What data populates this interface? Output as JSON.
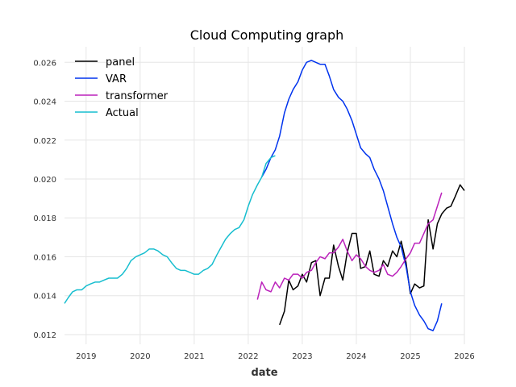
{
  "chart_data": {
    "type": "line",
    "title": "Cloud Computing graph",
    "xlabel": "date",
    "ylabel": "",
    "xlim": [
      2018.6,
      2026.0
    ],
    "ylim": [
      0.0115,
      0.0268
    ],
    "x_ticks": [
      2019,
      2020,
      2021,
      2022,
      2023,
      2024,
      2025,
      2026
    ],
    "x_tick_labels": [
      "2019",
      "2020",
      "2021",
      "2022",
      "2023",
      "2024",
      "2025",
      "2026"
    ],
    "y_ticks": [
      0.012,
      0.014,
      0.016,
      0.018,
      0.02,
      0.022,
      0.024,
      0.026
    ],
    "y_tick_labels": [
      "0.012",
      "0.014",
      "0.016",
      "0.018",
      "0.020",
      "0.022",
      "0.024",
      "0.026"
    ],
    "grid": true,
    "legend": "top-left",
    "series": [
      {
        "name": "panel",
        "color": "#000000",
        "points": [
          [
            2022.58,
            0.0125
          ],
          [
            2022.67,
            0.0132
          ],
          [
            2022.75,
            0.0148
          ],
          [
            2022.83,
            0.0143
          ],
          [
            2022.92,
            0.0145
          ],
          [
            2023.0,
            0.0151
          ],
          [
            2023.08,
            0.0147
          ],
          [
            2023.17,
            0.0157
          ],
          [
            2023.25,
            0.0158
          ],
          [
            2023.33,
            0.014
          ],
          [
            2023.42,
            0.0149
          ],
          [
            2023.5,
            0.0149
          ],
          [
            2023.58,
            0.0166
          ],
          [
            2023.67,
            0.0155
          ],
          [
            2023.75,
            0.0148
          ],
          [
            2023.83,
            0.0162
          ],
          [
            2023.92,
            0.0172
          ],
          [
            2024.0,
            0.0172
          ],
          [
            2024.08,
            0.0154
          ],
          [
            2024.17,
            0.0155
          ],
          [
            2024.25,
            0.0163
          ],
          [
            2024.33,
            0.0151
          ],
          [
            2024.42,
            0.015
          ],
          [
            2024.5,
            0.0158
          ],
          [
            2024.58,
            0.0155
          ],
          [
            2024.67,
            0.0163
          ],
          [
            2024.75,
            0.016
          ],
          [
            2024.83,
            0.0168
          ],
          [
            2024.92,
            0.0157
          ],
          [
            2025.0,
            0.0141
          ],
          [
            2025.08,
            0.0146
          ],
          [
            2025.17,
            0.0144
          ],
          [
            2025.25,
            0.0145
          ],
          [
            2025.33,
            0.0179
          ],
          [
            2025.42,
            0.0164
          ],
          [
            2025.5,
            0.0177
          ],
          [
            2025.58,
            0.0182
          ],
          [
            2025.67,
            0.0185
          ],
          [
            2025.75,
            0.0186
          ],
          [
            2025.83,
            0.0191
          ],
          [
            2025.92,
            0.0197
          ],
          [
            2026.0,
            0.0194
          ]
        ]
      },
      {
        "name": "VAR",
        "color": "#0033ee",
        "points": [
          [
            2022.25,
            0.0201
          ],
          [
            2022.33,
            0.0205
          ],
          [
            2022.42,
            0.0211
          ],
          [
            2022.5,
            0.0215
          ],
          [
            2022.58,
            0.0222
          ],
          [
            2022.67,
            0.0234
          ],
          [
            2022.75,
            0.0241
          ],
          [
            2022.83,
            0.0246
          ],
          [
            2022.92,
            0.025
          ],
          [
            2023.0,
            0.0256
          ],
          [
            2023.08,
            0.026
          ],
          [
            2023.17,
            0.0261
          ],
          [
            2023.25,
            0.026
          ],
          [
            2023.33,
            0.0259
          ],
          [
            2023.42,
            0.0259
          ],
          [
            2023.5,
            0.0253
          ],
          [
            2023.58,
            0.0246
          ],
          [
            2023.67,
            0.0242
          ],
          [
            2023.75,
            0.024
          ],
          [
            2023.83,
            0.0236
          ],
          [
            2023.92,
            0.023
          ],
          [
            2024.0,
            0.0223
          ],
          [
            2024.08,
            0.0216
          ],
          [
            2024.17,
            0.0213
          ],
          [
            2024.25,
            0.0211
          ],
          [
            2024.33,
            0.0205
          ],
          [
            2024.42,
            0.02
          ],
          [
            2024.5,
            0.0194
          ],
          [
            2024.58,
            0.0186
          ],
          [
            2024.67,
            0.0177
          ],
          [
            2024.75,
            0.017
          ],
          [
            2024.83,
            0.0165
          ],
          [
            2024.92,
            0.0155
          ],
          [
            2025.0,
            0.0142
          ],
          [
            2025.08,
            0.0135
          ],
          [
            2025.17,
            0.013
          ],
          [
            2025.25,
            0.0127
          ],
          [
            2025.33,
            0.0123
          ],
          [
            2025.42,
            0.0122
          ],
          [
            2025.5,
            0.0127
          ],
          [
            2025.58,
            0.0136
          ]
        ]
      },
      {
        "name": "transformer",
        "color": "#bb22bb",
        "points": [
          [
            2022.17,
            0.0138
          ],
          [
            2022.25,
            0.0147
          ],
          [
            2022.33,
            0.0143
          ],
          [
            2022.42,
            0.0142
          ],
          [
            2022.5,
            0.0147
          ],
          [
            2022.58,
            0.0144
          ],
          [
            2022.67,
            0.0149
          ],
          [
            2022.75,
            0.0148
          ],
          [
            2022.83,
            0.0151
          ],
          [
            2022.92,
            0.0151
          ],
          [
            2023.0,
            0.0149
          ],
          [
            2023.08,
            0.0152
          ],
          [
            2023.17,
            0.0153
          ],
          [
            2023.25,
            0.0157
          ],
          [
            2023.33,
            0.016
          ],
          [
            2023.42,
            0.0159
          ],
          [
            2023.5,
            0.0162
          ],
          [
            2023.58,
            0.0162
          ],
          [
            2023.67,
            0.0165
          ],
          [
            2023.75,
            0.0169
          ],
          [
            2023.83,
            0.0163
          ],
          [
            2023.92,
            0.0158
          ],
          [
            2024.0,
            0.0161
          ],
          [
            2024.08,
            0.0159
          ],
          [
            2024.17,
            0.0155
          ],
          [
            2024.25,
            0.0153
          ],
          [
            2024.33,
            0.0152
          ],
          [
            2024.42,
            0.0153
          ],
          [
            2024.5,
            0.0156
          ],
          [
            2024.58,
            0.0151
          ],
          [
            2024.67,
            0.015
          ],
          [
            2024.75,
            0.0152
          ],
          [
            2024.83,
            0.0155
          ],
          [
            2024.92,
            0.0159
          ],
          [
            2025.0,
            0.0162
          ],
          [
            2025.08,
            0.0167
          ],
          [
            2025.17,
            0.0167
          ],
          [
            2025.25,
            0.0172
          ],
          [
            2025.33,
            0.0177
          ],
          [
            2025.42,
            0.0179
          ],
          [
            2025.5,
            0.0186
          ],
          [
            2025.58,
            0.0193
          ]
        ]
      },
      {
        "name": "Actual",
        "color": "#17becf",
        "points": [
          [
            2018.6,
            0.0136
          ],
          [
            2018.67,
            0.0139
          ],
          [
            2018.75,
            0.0142
          ],
          [
            2018.83,
            0.0143
          ],
          [
            2018.92,
            0.0143
          ],
          [
            2019.0,
            0.0145
          ],
          [
            2019.08,
            0.0146
          ],
          [
            2019.17,
            0.0147
          ],
          [
            2019.25,
            0.0147
          ],
          [
            2019.33,
            0.0148
          ],
          [
            2019.42,
            0.0149
          ],
          [
            2019.5,
            0.0149
          ],
          [
            2019.58,
            0.0149
          ],
          [
            2019.67,
            0.0151
          ],
          [
            2019.75,
            0.0154
          ],
          [
            2019.83,
            0.0158
          ],
          [
            2019.92,
            0.016
          ],
          [
            2020.0,
            0.0161
          ],
          [
            2020.08,
            0.0162
          ],
          [
            2020.17,
            0.0164
          ],
          [
            2020.25,
            0.0164
          ],
          [
            2020.33,
            0.0163
          ],
          [
            2020.42,
            0.0161
          ],
          [
            2020.5,
            0.016
          ],
          [
            2020.58,
            0.0157
          ],
          [
            2020.67,
            0.0154
          ],
          [
            2020.75,
            0.0153
          ],
          [
            2020.83,
            0.0153
          ],
          [
            2020.92,
            0.0152
          ],
          [
            2021.0,
            0.0151
          ],
          [
            2021.08,
            0.0151
          ],
          [
            2021.17,
            0.0153
          ],
          [
            2021.25,
            0.0154
          ],
          [
            2021.33,
            0.0156
          ],
          [
            2021.42,
            0.0161
          ],
          [
            2021.5,
            0.0165
          ],
          [
            2021.58,
            0.0169
          ],
          [
            2021.67,
            0.0172
          ],
          [
            2021.75,
            0.0174
          ],
          [
            2021.83,
            0.0175
          ],
          [
            2021.92,
            0.0179
          ],
          [
            2022.0,
            0.0186
          ],
          [
            2022.08,
            0.0192
          ],
          [
            2022.17,
            0.0197
          ],
          [
            2022.25,
            0.0201
          ],
          [
            2022.33,
            0.0208
          ],
          [
            2022.42,
            0.0211
          ],
          [
            2022.5,
            0.0212
          ]
        ]
      }
    ]
  }
}
